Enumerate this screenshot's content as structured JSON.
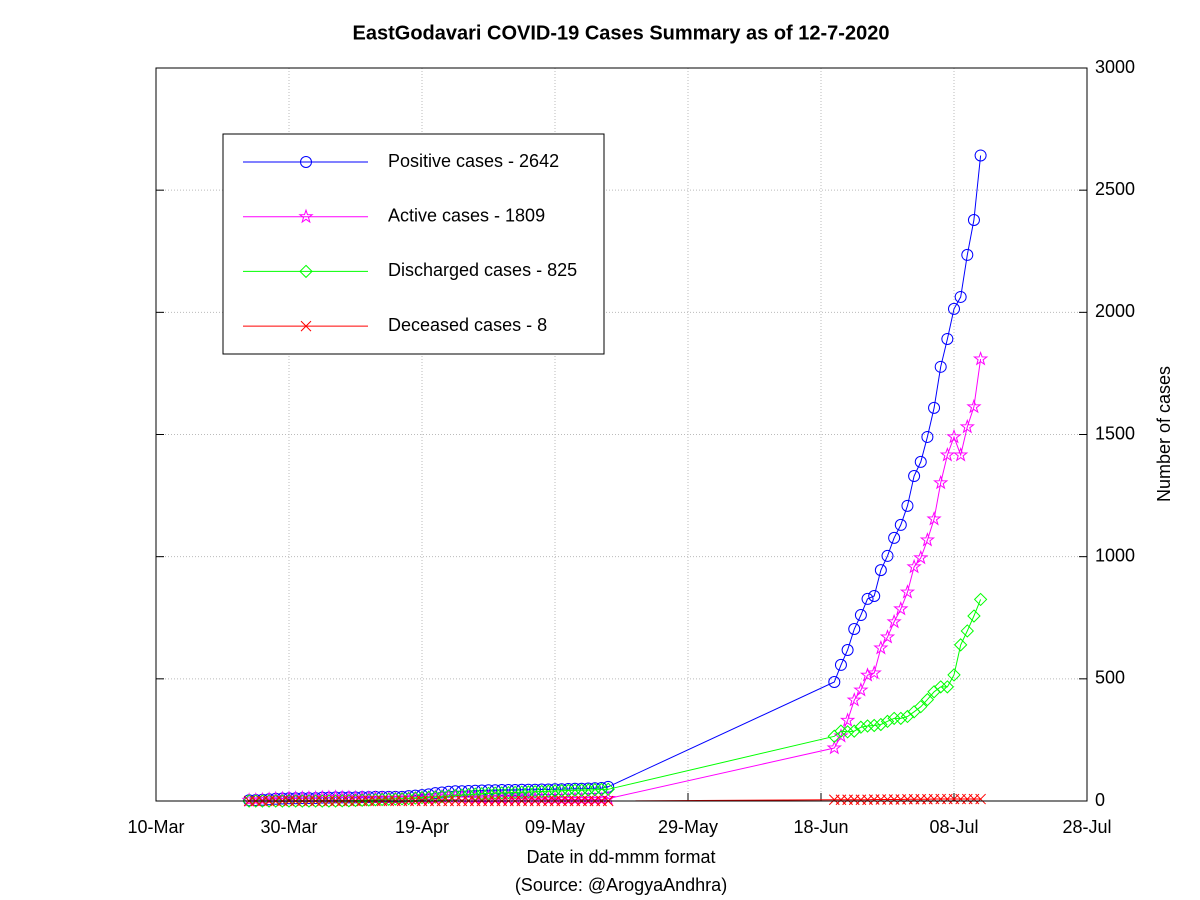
{
  "chart_data": {
    "type": "line",
    "title": "EastGodavari COVID-19 Cases Summary as of 12-7-2020",
    "x_label": "Date in dd-mmm format",
    "source": "(Source: @ArogyaAndhra)",
    "y_label": "Number of cases",
    "x": [
      "24-Mar",
      "25-Mar",
      "26-Mar",
      "27-Mar",
      "28-Mar",
      "29-Mar",
      "30-Mar",
      "31-Mar",
      "01-Apr",
      "02-Apr",
      "03-Apr",
      "04-Apr",
      "05-Apr",
      "06-Apr",
      "07-Apr",
      "08-Apr",
      "09-Apr",
      "10-Apr",
      "11-Apr",
      "12-Apr",
      "13-Apr",
      "14-Apr",
      "15-Apr",
      "16-Apr",
      "17-Apr",
      "18-Apr",
      "19-Apr",
      "20-Apr",
      "21-Apr",
      "22-Apr",
      "23-Apr",
      "24-Apr",
      "25-Apr",
      "26-Apr",
      "27-Apr",
      "28-Apr",
      "29-Apr",
      "30-Apr",
      "01-May",
      "02-May",
      "03-May",
      "04-May",
      "05-May",
      "06-May",
      "07-May",
      "08-May",
      "09-May",
      "10-May",
      "11-May",
      "12-May",
      "13-May",
      "14-May",
      "15-May",
      "16-May",
      "17-May",
      "20-Jun",
      "21-Jun",
      "22-Jun",
      "23-Jun",
      "24-Jun",
      "25-Jun",
      "26-Jun",
      "27-Jun",
      "28-Jun",
      "29-Jun",
      "30-Jun",
      "01-Jul",
      "02-Jul",
      "03-Jul",
      "04-Jul",
      "05-Jul",
      "06-Jul",
      "07-Jul",
      "08-Jul",
      "09-Jul",
      "10-Jul",
      "11-Jul",
      "12-Jul"
    ],
    "series": [
      {
        "name": "Positive cases - 2642",
        "color": "#0000ff",
        "marker": "circle",
        "values": [
          3,
          4,
          5,
          7,
          9,
          10,
          11,
          11,
          12,
          12,
          12,
          14,
          14,
          15,
          15,
          15,
          15,
          16,
          16,
          17,
          17,
          17,
          17,
          17,
          20,
          22,
          24,
          27,
          32,
          35,
          38,
          40,
          40,
          41,
          42,
          43,
          44,
          44,
          45,
          45,
          45,
          46,
          46,
          46,
          47,
          47,
          48,
          48,
          49,
          50,
          50,
          51,
          52,
          53,
          58,
          487,
          557,
          618,
          704,
          761,
          827,
          839,
          945,
          1003,
          1077,
          1130,
          1208,
          1330,
          1388,
          1490,
          1609,
          1777,
          1891,
          2014,
          2063,
          2235,
          2378,
          2642
        ]
      },
      {
        "name": "Active cases - 1809",
        "color": "#ff00ff",
        "marker": "star",
        "values": [
          3,
          4,
          5,
          7,
          9,
          10,
          11,
          11,
          12,
          12,
          12,
          14,
          14,
          15,
          14,
          14,
          13,
          13,
          12,
          12,
          11,
          10,
          9,
          8,
          10,
          10,
          10,
          12,
          16,
          17,
          18,
          18,
          16,
          15,
          14,
          13,
          13,
          12,
          12,
          11,
          10,
          10,
          9,
          8,
          8,
          7,
          7,
          6,
          6,
          6,
          6,
          6,
          6,
          6,
          10,
          217,
          266,
          330,
          413,
          454,
          515,
          524,
          626,
          671,
          733,
          786,
          855,
          958,
          995,
          1068,
          1154,
          1302,
          1416,
          1490,
          1416,
          1531,
          1613,
          1809
        ]
      },
      {
        "name": "Discharged cases - 825",
        "color": "#00ff00",
        "marker": "diamond",
        "values": [
          0,
          0,
          0,
          0,
          0,
          0,
          0,
          0,
          0,
          0,
          0,
          0,
          0,
          0,
          1,
          1,
          2,
          3,
          4,
          5,
          6,
          7,
          8,
          9,
          10,
          12,
          14,
          15,
          16,
          18,
          20,
          22,
          24,
          26,
          28,
          30,
          31,
          32,
          33,
          34,
          35,
          36,
          37,
          38,
          39,
          40,
          41,
          42,
          43,
          44,
          44,
          45,
          46,
          47,
          48,
          265,
          286,
          283,
          286,
          302,
          307,
          309,
          313,
          326,
          338,
          338,
          346,
          365,
          386,
          415,
          447,
          467,
          467,
          516,
          639,
          696,
          757,
          825
        ]
      },
      {
        "name": "Deceased cases - 8",
        "color": "#ff0000",
        "marker": "x",
        "values": [
          0,
          0,
          0,
          0,
          0,
          0,
          0,
          0,
          0,
          0,
          0,
          0,
          0,
          0,
          0,
          0,
          0,
          0,
          0,
          0,
          0,
          0,
          0,
          0,
          0,
          0,
          0,
          0,
          0,
          0,
          0,
          0,
          0,
          0,
          0,
          0,
          0,
          0,
          0,
          0,
          0,
          0,
          0,
          0,
          0,
          0,
          0,
          0,
          0,
          0,
          0,
          0,
          0,
          0,
          0,
          5,
          5,
          5,
          5,
          5,
          5,
          6,
          6,
          6,
          6,
          6,
          7,
          7,
          7,
          7,
          8,
          8,
          8,
          8,
          8,
          8,
          8,
          8
        ]
      }
    ],
    "xlim": [
      "10-Mar",
      "28-Jul"
    ],
    "xticks": [
      "10-Mar",
      "30-Mar",
      "19-Apr",
      "09-May",
      "29-May",
      "18-Jun",
      "08-Jul",
      "28-Jul"
    ],
    "ylim": [
      0,
      3000
    ],
    "yticks": [
      0,
      500,
      1000,
      1500,
      2000,
      2500,
      3000
    ],
    "y_axis_side": "right",
    "grid": true,
    "legend": "upper left"
  }
}
